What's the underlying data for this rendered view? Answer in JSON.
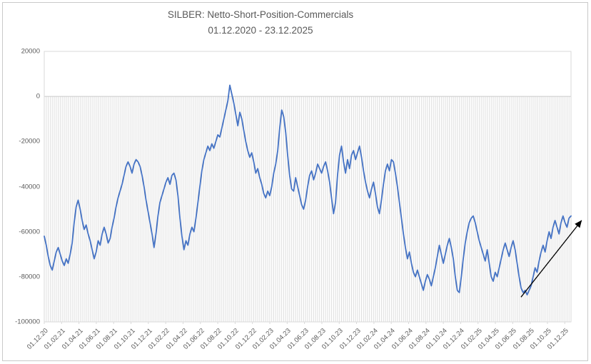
{
  "chart_data": {
    "type": "line",
    "title": "SILBER: Netto-Short-Position-Commercials",
    "subtitle": "01.12.2020 - 23.12.2025",
    "x_start_date": "01.12.2020",
    "x_end_date": "23.12.2025",
    "frequency": "weekly",
    "legend": "none",
    "grid": "vertical-drop-lines-below-zero",
    "ylim": [
      -100000,
      20000
    ],
    "y_ticks": [
      20000,
      0,
      -20000,
      -40000,
      -60000,
      -80000,
      -100000
    ],
    "y_tick_labels": [
      "20000",
      "0",
      "-20000",
      "-40000",
      "-60000",
      "-80000",
      "-100000"
    ],
    "x_tick_interval_months": 2,
    "x_span_months": 60.72,
    "x_ticks": [
      "01.12.20",
      "01.02.21",
      "01.04.21",
      "01.06.21",
      "01.08.21",
      "01.10.21",
      "01.12.21",
      "01.02.22",
      "01.04.22",
      "01.06.22",
      "01.08.22",
      "01.10.22",
      "01.12.22",
      "01.02.23",
      "01.04.23",
      "01.06.23",
      "01.08.23",
      "01.10.23",
      "01.12.23",
      "01.02.24",
      "01.04.24",
      "01.06.24",
      "01.08.24",
      "01.10.24",
      "01.12.24",
      "01.02.25",
      "01.04.25",
      "01.06.25",
      "01.08.25",
      "01.10.25",
      "01.12.25"
    ],
    "colors": {
      "line": "#4472C4",
      "stripe": "#dedede",
      "border": "#d9d9d9",
      "zero_line": "#c9c9c9",
      "text": "#595959",
      "frame_border": "#c9c9c9"
    },
    "annotation": {
      "shape": "trend-arrow",
      "color": "#000000",
      "from": {
        "x_frac": 0.905,
        "value": -89000
      },
      "to": {
        "x_frac": 1.02,
        "value": -55000
      }
    },
    "values": [
      -62000,
      -66000,
      -71000,
      -75000,
      -77000,
      -73000,
      -69000,
      -67000,
      -70000,
      -73000,
      -75000,
      -72000,
      -74000,
      -70000,
      -65000,
      -56000,
      -49000,
      -46000,
      -50000,
      -55000,
      -59000,
      -57000,
      -61000,
      -64000,
      -68000,
      -72000,
      -69000,
      -64000,
      -66000,
      -61000,
      -58000,
      -61000,
      -65000,
      -63000,
      -58000,
      -54000,
      -49000,
      -45000,
      -42000,
      -39000,
      -35000,
      -31000,
      -29000,
      -31000,
      -34000,
      -30000,
      -28000,
      -29000,
      -31000,
      -35000,
      -40000,
      -46000,
      -51000,
      -56000,
      -61000,
      -67000,
      -61000,
      -53000,
      -47000,
      -44000,
      -41000,
      -38000,
      -36000,
      -39000,
      -35000,
      -34000,
      -37000,
      -44000,
      -54000,
      -62000,
      -68000,
      -64000,
      -66000,
      -61000,
      -58000,
      -60000,
      -54000,
      -47000,
      -40000,
      -33000,
      -28000,
      -25000,
      -22000,
      -24000,
      -21000,
      -23000,
      -20000,
      -17000,
      -18000,
      -14000,
      -10000,
      -6000,
      -2000,
      5000,
      1000,
      -3000,
      -8000,
      -13000,
      -7000,
      -10000,
      -15000,
      -20000,
      -24000,
      -27000,
      -25000,
      -29000,
      -34000,
      -32000,
      -36000,
      -39000,
      -43000,
      -45000,
      -42000,
      -44000,
      -40000,
      -34000,
      -30000,
      -24000,
      -14000,
      -6000,
      -9000,
      -16000,
      -26000,
      -35000,
      -41000,
      -42000,
      -36000,
      -40000,
      -44000,
      -48000,
      -50000,
      -46000,
      -40000,
      -35000,
      -33000,
      -37000,
      -34000,
      -30000,
      -32000,
      -34000,
      -31000,
      -29000,
      -33000,
      -38000,
      -45000,
      -52000,
      -47000,
      -35000,
      -26000,
      -22000,
      -29000,
      -34000,
      -28000,
      -32000,
      -26000,
      -24000,
      -28000,
      -25000,
      -22000,
      -27000,
      -33000,
      -38000,
      -42000,
      -45000,
      -41000,
      -38000,
      -43000,
      -49000,
      -52000,
      -46000,
      -39000,
      -33000,
      -30000,
      -33000,
      -28000,
      -29000,
      -34000,
      -40000,
      -47000,
      -54000,
      -61000,
      -67000,
      -72000,
      -69000,
      -74000,
      -78000,
      -80000,
      -77000,
      -80000,
      -83000,
      -86000,
      -82000,
      -79000,
      -81000,
      -84000,
      -80000,
      -76000,
      -71000,
      -66000,
      -70000,
      -74000,
      -70000,
      -66000,
      -63000,
      -67000,
      -72000,
      -80000,
      -86000,
      -87000,
      -80000,
      -72000,
      -65000,
      -60000,
      -56000,
      -54000,
      -53000,
      -56000,
      -60000,
      -64000,
      -67000,
      -70000,
      -73000,
      -68000,
      -74000,
      -80000,
      -82000,
      -78000,
      -80000,
      -76000,
      -72000,
      -68000,
      -65000,
      -68000,
      -71000,
      -67000,
      -64000,
      -68000,
      -74000,
      -80000,
      -85000,
      -87000,
      -86000,
      -88000,
      -86000,
      -84000,
      -80000,
      -76000,
      -78000,
      -73000,
      -69000,
      -66000,
      -69000,
      -64000,
      -60000,
      -63000,
      -58000,
      -55000,
      -58000,
      -61000,
      -56000,
      -53000,
      -56000,
      -58000,
      -54000,
      -53000
    ]
  }
}
